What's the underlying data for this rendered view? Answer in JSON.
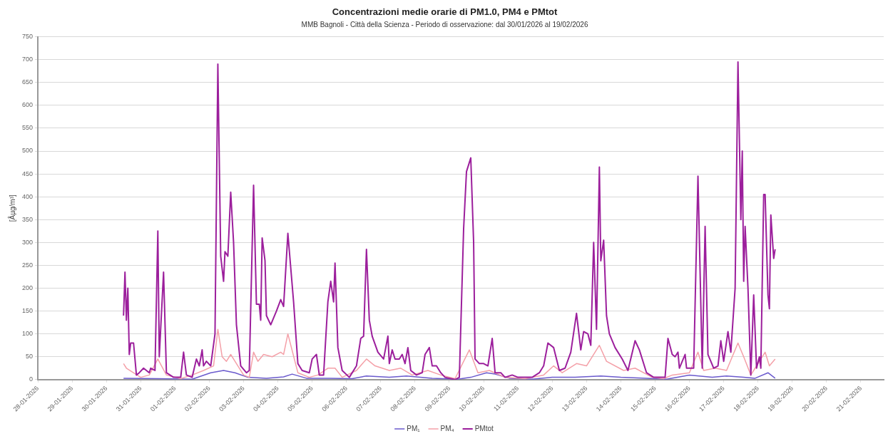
{
  "chart_data": {
    "type": "line",
    "title": "Concentrazioni medie orarie di PM1.0, PM4 e PMtot",
    "subtitle": "MMB Bagnoli - Città della Scienza - Periodo di osservazione: dal 30/01/2026 al 19/02/2026",
    "ylabel": "[Âµg/m³]",
    "xlim": [
      "2026-01-28",
      "2026-02-21T16:00"
    ],
    "xticks": [
      {
        "value": "2026-01-28",
        "label": "28-01-2026"
      },
      {
        "value": "2026-01-29",
        "label": "29-01-2026"
      },
      {
        "value": "2026-01-30",
        "label": "30-01-2026"
      },
      {
        "value": "2026-01-31",
        "label": "31-01-2026"
      },
      {
        "value": "2026-02-01",
        "label": "01-02-2026"
      },
      {
        "value": "2026-02-02",
        "label": "02-02-2026"
      },
      {
        "value": "2026-02-03",
        "label": "03-02-2026"
      },
      {
        "value": "2026-02-04",
        "label": "04-02-2026"
      },
      {
        "value": "2026-02-05",
        "label": "05-02-2026"
      },
      {
        "value": "2026-02-06",
        "label": "06-02-2026"
      },
      {
        "value": "2026-02-07",
        "label": "07-02-2026"
      },
      {
        "value": "2026-02-08",
        "label": "08-02-2026"
      },
      {
        "value": "2026-02-09",
        "label": "09-02-2026"
      },
      {
        "value": "2026-02-10",
        "label": "10-02-2026"
      },
      {
        "value": "2026-02-11",
        "label": "11-02-2026"
      },
      {
        "value": "2026-02-12",
        "label": "12-02-2026"
      },
      {
        "value": "2026-02-13",
        "label": "13-02-2026"
      },
      {
        "value": "2026-02-14",
        "label": "14-02-2026"
      },
      {
        "value": "2026-02-15",
        "label": "15-02-2026"
      },
      {
        "value": "2026-02-16",
        "label": "16-02-2026"
      },
      {
        "value": "2026-02-17",
        "label": "17-02-2026"
      },
      {
        "value": "2026-02-18",
        "label": "18-02-2026"
      },
      {
        "value": "2026-02-19",
        "label": "19-02-2026"
      },
      {
        "value": "2026-02-20",
        "label": "20-02-2026"
      },
      {
        "value": "2026-02-21",
        "label": "21-02-2026"
      }
    ],
    "ylim": [
      0,
      750
    ],
    "yticks": [
      0,
      50,
      100,
      150,
      200,
      250,
      300,
      350,
      400,
      450,
      500,
      550,
      600,
      650,
      700,
      750
    ],
    "grid": "y",
    "legend": "bottom",
    "marker": "none",
    "line_style": "solid",
    "series": [
      {
        "name": "PM₁",
        "color": "#6a5acd",
        "x": [
          "2026-01-30T12:00",
          "2026-01-31T12:00",
          "2026-02-01T12:00",
          "2026-02-02T01:00",
          "2026-02-02T10:00",
          "2026-02-02T18:00",
          "2026-02-03T03:00",
          "2026-02-03T16:00",
          "2026-02-04T04:00",
          "2026-02-04T10:00",
          "2026-02-04T20:00",
          "2026-02-05T12:00",
          "2026-02-06T04:00",
          "2026-02-06T14:00",
          "2026-02-07T06:00",
          "2026-02-07T18:00",
          "2026-02-08T12:00",
          "2026-02-09T06:00",
          "2026-02-09T15:00",
          "2026-02-10T02:00",
          "2026-02-10T08:00",
          "2026-02-10T18:00",
          "2026-02-11T10:00",
          "2026-02-12T00:00",
          "2026-02-12T16:00",
          "2026-02-13T10:00",
          "2026-02-14T00:00",
          "2026-02-14T18:00",
          "2026-02-15T08:00",
          "2026-02-16T00:00",
          "2026-02-16T16:00",
          "2026-02-17T02:00",
          "2026-02-17T14:00",
          "2026-02-17T22:00",
          "2026-02-18T07:00",
          "2026-02-18T12:00"
        ],
        "values": [
          3,
          2,
          1,
          15,
          20,
          15,
          5,
          3,
          6,
          12,
          3,
          3,
          2,
          8,
          5,
          8,
          3,
          1,
          5,
          15,
          12,
          3,
          1,
          5,
          5,
          8,
          5,
          3,
          1,
          10,
          5,
          8,
          5,
          3,
          15,
          3
        ]
      },
      {
        "name": "PM₄",
        "color": "#f4a0a8",
        "x": [
          "2026-01-30T12:00",
          "2026-01-30T14:00",
          "2026-01-31T00:00",
          "2026-01-31T06:00",
          "2026-01-31T12:00",
          "2026-01-31T18:00",
          "2026-02-01T04:00",
          "2026-02-01T12:00",
          "2026-02-01T20:00",
          "2026-02-02T03:00",
          "2026-02-02T06:00",
          "2026-02-02T09:00",
          "2026-02-02T12:00",
          "2026-02-02T15:00",
          "2026-02-02T18:00",
          "2026-02-03T00:00",
          "2026-02-03T04:00",
          "2026-02-03T07:00",
          "2026-02-03T10:00",
          "2026-02-03T14:00",
          "2026-02-03T20:00",
          "2026-02-04T02:00",
          "2026-02-04T04:00",
          "2026-02-04T07:00",
          "2026-02-04T14:00",
          "2026-02-04T22:00",
          "2026-02-05T04:00",
          "2026-02-05T11:00",
          "2026-02-05T16:00",
          "2026-02-05T21:00",
          "2026-02-06T07:00",
          "2026-02-06T14:00",
          "2026-02-06T20:00",
          "2026-02-07T06:00",
          "2026-02-07T14:00",
          "2026-02-07T22:00",
          "2026-02-08T09:00",
          "2026-02-08T18:00",
          "2026-02-09T04:00",
          "2026-02-09T14:00",
          "2026-02-09T20:00",
          "2026-02-10T04:00",
          "2026-02-10T15:00",
          "2026-02-11T05:00",
          "2026-02-11T18:00",
          "2026-02-12T01:00",
          "2026-02-12T07:00",
          "2026-02-12T17:00",
          "2026-02-13T00:00",
          "2026-02-13T09:00",
          "2026-02-13T14:00",
          "2026-02-14T02:00",
          "2026-02-14T10:00",
          "2026-02-14T22:00",
          "2026-02-15T06:00",
          "2026-02-15T12:00",
          "2026-02-16T00:00",
          "2026-02-16T06:00",
          "2026-02-16T10:00",
          "2026-02-16T18:00",
          "2026-02-17T02:00",
          "2026-02-17T10:00",
          "2026-02-17T14:00",
          "2026-02-17T19:00",
          "2026-02-17T22:00",
          "2026-02-18T05:00",
          "2026-02-18T08:00",
          "2026-02-18T12:00"
        ],
        "values": [
          35,
          25,
          5,
          10,
          45,
          10,
          2,
          10,
          20,
          30,
          110,
          50,
          40,
          55,
          40,
          10,
          5,
          60,
          40,
          55,
          50,
          60,
          55,
          100,
          15,
          5,
          10,
          25,
          25,
          5,
          20,
          45,
          30,
          20,
          25,
          10,
          20,
          10,
          2,
          65,
          15,
          20,
          5,
          2,
          10,
          30,
          15,
          35,
          30,
          75,
          40,
          20,
          25,
          5,
          2,
          10,
          15,
          60,
          20,
          25,
          20,
          80,
          50,
          10,
          25,
          60,
          30,
          45
        ]
      },
      {
        "name": "PMtot",
        "color": "#9c1f9c",
        "x": [
          "2026-01-30T12:00",
          "2026-01-30T13:00",
          "2026-01-30T14:00",
          "2026-01-30T15:00",
          "2026-01-30T16:00",
          "2026-01-30T17:00",
          "2026-01-30T19:00",
          "2026-01-30T21:00",
          "2026-01-30T23:00",
          "2026-01-31T02:00",
          "2026-01-31T06:00",
          "2026-01-31T07:00",
          "2026-01-31T10:00",
          "2026-01-31T12:00",
          "2026-01-31T13:00",
          "2026-01-31T16:00",
          "2026-01-31T18:00",
          "2026-01-31T23:00",
          "2026-02-01T04:00",
          "2026-02-01T06:00",
          "2026-02-01T08:00",
          "2026-02-01T12:00",
          "2026-02-01T15:00",
          "2026-02-01T17:00",
          "2026-02-01T19:00",
          "2026-02-01T20:00",
          "2026-02-01T22:00",
          "2026-02-02T01:00",
          "2026-02-02T04:00",
          "2026-02-02T06:00",
          "2026-02-02T08:00",
          "2026-02-02T10:00",
          "2026-02-02T11:00",
          "2026-02-02T13:00",
          "2026-02-02T15:00",
          "2026-02-02T17:00",
          "2026-02-02T19:00",
          "2026-02-02T22:00",
          "2026-02-03T02:00",
          "2026-02-03T04:00",
          "2026-02-03T07:00",
          "2026-02-03T09:00",
          "2026-02-03T11:00",
          "2026-02-03T12:00",
          "2026-02-03T13:00",
          "2026-02-03T15:00",
          "2026-02-03T16:00",
          "2026-02-03T19:00",
          "2026-02-03T23:00",
          "2026-02-04T02:00",
          "2026-02-04T04:00",
          "2026-02-04T07:00",
          "2026-02-04T11:00",
          "2026-02-04T14:00",
          "2026-02-04T17:00",
          "2026-02-04T22:00",
          "2026-02-05T00:00",
          "2026-02-05T03:00",
          "2026-02-05T05:00",
          "2026-02-05T08:00",
          "2026-02-05T11:00",
          "2026-02-05T13:00",
          "2026-02-05T15:00",
          "2026-02-05T16:00",
          "2026-02-05T18:00",
          "2026-02-05T21:00",
          "2026-02-06T02:00",
          "2026-02-06T07:00",
          "2026-02-06T10:00",
          "2026-02-06T12:00",
          "2026-02-06T14:00",
          "2026-02-06T16:00",
          "2026-02-06T18:00",
          "2026-02-06T22:00",
          "2026-02-07T02:00",
          "2026-02-07T05:00",
          "2026-02-07T06:00",
          "2026-02-07T08:00",
          "2026-02-07T10:00",
          "2026-02-07T13:00",
          "2026-02-07T15:00",
          "2026-02-07T17:00",
          "2026-02-07T19:00",
          "2026-02-07T21:00",
          "2026-02-08T01:00",
          "2026-02-08T05:00",
          "2026-02-08T07:00",
          "2026-02-08T10:00",
          "2026-02-08T12:00",
          "2026-02-08T15:00",
          "2026-02-08T18:00",
          "2026-02-08T21:00",
          "2026-02-09T04:00",
          "2026-02-09T07:00",
          "2026-02-09T10:00",
          "2026-02-09T12:00",
          "2026-02-09T15:00",
          "2026-02-09T17:00",
          "2026-02-09T18:00",
          "2026-02-09T21:00",
          "2026-02-10T00:00",
          "2026-02-10T03:00",
          "2026-02-10T06:00",
          "2026-02-10T08:00",
          "2026-02-10T12:00",
          "2026-02-10T15:00",
          "2026-02-10T20:00",
          "2026-02-11T00:00",
          "2026-02-11T05:00",
          "2026-02-11T10:00",
          "2026-02-11T15:00",
          "2026-02-11T18:00",
          "2026-02-11T21:00",
          "2026-02-12T01:00",
          "2026-02-12T05:00",
          "2026-02-12T09:00",
          "2026-02-12T13:00",
          "2026-02-12T17:00",
          "2026-02-12T20:00",
          "2026-02-12T22:00",
          "2026-02-13T01:00",
          "2026-02-13T03:00",
          "2026-02-13T05:00",
          "2026-02-13T07:00",
          "2026-02-13T09:00",
          "2026-02-13T10:00",
          "2026-02-13T12:00",
          "2026-02-13T14:00",
          "2026-02-13T16:00",
          "2026-02-13T20:00",
          "2026-02-14T01:00",
          "2026-02-14T05:00",
          "2026-02-14T10:00",
          "2026-02-14T13:00",
          "2026-02-14T18:00",
          "2026-02-14T23:00",
          "2026-02-15T04:00",
          "2026-02-15T07:00",
          "2026-02-15T09:00",
          "2026-02-15T12:00",
          "2026-02-15T14:00",
          "2026-02-15T16:00",
          "2026-02-15T17:00",
          "2026-02-15T21:00",
          "2026-02-15T22:00",
          "2026-02-16T03:00",
          "2026-02-16T06:00",
          "2026-02-16T09:00",
          "2026-02-16T11:00",
          "2026-02-16T13:00",
          "2026-02-16T17:00",
          "2026-02-16T20:00",
          "2026-02-16T22:00",
          "2026-02-17T00:00",
          "2026-02-17T03:00",
          "2026-02-17T05:00",
          "2026-02-17T08:00",
          "2026-02-17T10:00",
          "2026-02-17T12:00",
          "2026-02-17T13:00",
          "2026-02-17T14:00",
          "2026-02-17T15:00",
          "2026-02-17T17:00",
          "2026-02-17T19:00",
          "2026-02-17T21:00",
          "2026-02-17T23:00",
          "2026-02-18T01:00",
          "2026-02-18T02:00",
          "2026-02-18T04:00",
          "2026-02-18T05:00",
          "2026-02-18T07:00",
          "2026-02-18T08:00",
          "2026-02-18T09:00",
          "2026-02-18T11:00",
          "2026-02-18T12:00"
        ],
        "values": [
          140,
          235,
          130,
          200,
          55,
          80,
          80,
          10,
          15,
          25,
          15,
          25,
          20,
          325,
          50,
          235,
          15,
          5,
          5,
          60,
          10,
          5,
          45,
          30,
          65,
          30,
          40,
          30,
          100,
          690,
          270,
          215,
          280,
          270,
          410,
          300,
          120,
          30,
          15,
          20,
          425,
          165,
          165,
          130,
          310,
          260,
          140,
          120,
          150,
          175,
          160,
          320,
          170,
          35,
          20,
          15,
          45,
          55,
          10,
          10,
          170,
          215,
          170,
          255,
          70,
          20,
          5,
          30,
          90,
          95,
          285,
          130,
          95,
          60,
          45,
          95,
          35,
          65,
          45,
          45,
          55,
          35,
          70,
          20,
          10,
          15,
          55,
          70,
          30,
          30,
          15,
          5,
          0,
          5,
          330,
          455,
          485,
          300,
          45,
          35,
          35,
          30,
          90,
          15,
          15,
          5,
          10,
          5,
          5,
          5,
          15,
          30,
          80,
          70,
          20,
          25,
          60,
          145,
          65,
          105,
          100,
          75,
          300,
          110,
          465,
          260,
          305,
          140,
          100,
          70,
          45,
          20,
          85,
          65,
          15,
          5,
          5,
          5,
          90,
          55,
          50,
          60,
          25,
          55,
          25,
          25,
          445,
          25,
          335,
          55,
          25,
          30,
          85,
          40,
          105,
          60,
          200,
          695,
          350,
          500,
          215,
          335,
          200,
          10,
          185,
          25,
          50,
          25,
          405,
          405,
          185,
          155,
          360,
          265,
          285
        ]
      }
    ]
  }
}
